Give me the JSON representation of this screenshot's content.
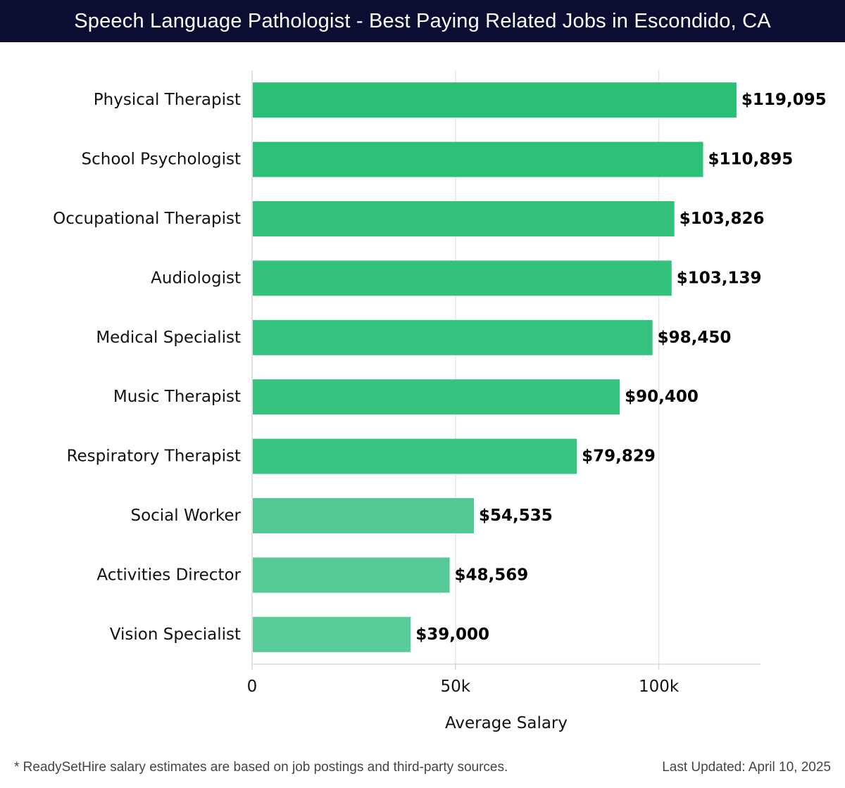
{
  "header": {
    "title": "Speech Language Pathologist - Best Paying Related Jobs in Escondido, CA"
  },
  "chart_data": {
    "type": "bar",
    "orientation": "horizontal",
    "categories": [
      "Physical Therapist",
      "School Psychologist",
      "Occupational Therapist",
      "Audiologist",
      "Medical Specialist",
      "Music Therapist",
      "Respiratory Therapist",
      "Social Worker",
      "Activities Director",
      "Vision Specialist"
    ],
    "values": [
      119095,
      110895,
      103826,
      103139,
      98450,
      90400,
      79829,
      54535,
      48569,
      39000
    ],
    "value_labels": [
      "$119,095",
      "$110,895",
      "$103,826",
      "$103,139",
      "$98,450",
      "$90,400",
      "$79,829",
      "$54,535",
      "$48,569",
      "$39,000"
    ],
    "xlabel": "Average Salary",
    "ylabel": "",
    "xlim": [
      0,
      125000
    ],
    "xticks": [
      0,
      50000,
      100000
    ],
    "xtick_labels": [
      "0",
      "50k",
      "100k"
    ],
    "grid": true,
    "colors": [
      "#2bbf75",
      "#2dc078",
      "#31c17b",
      "#33c17c",
      "#35c27e",
      "#37c37f",
      "#3ac481",
      "#52c994",
      "#55ca96",
      "#59cc99"
    ]
  },
  "footer": {
    "note": "* ReadySetHire salary estimates are based on job postings and third-party sources.",
    "updated": "Last Updated: April 10, 2025"
  }
}
